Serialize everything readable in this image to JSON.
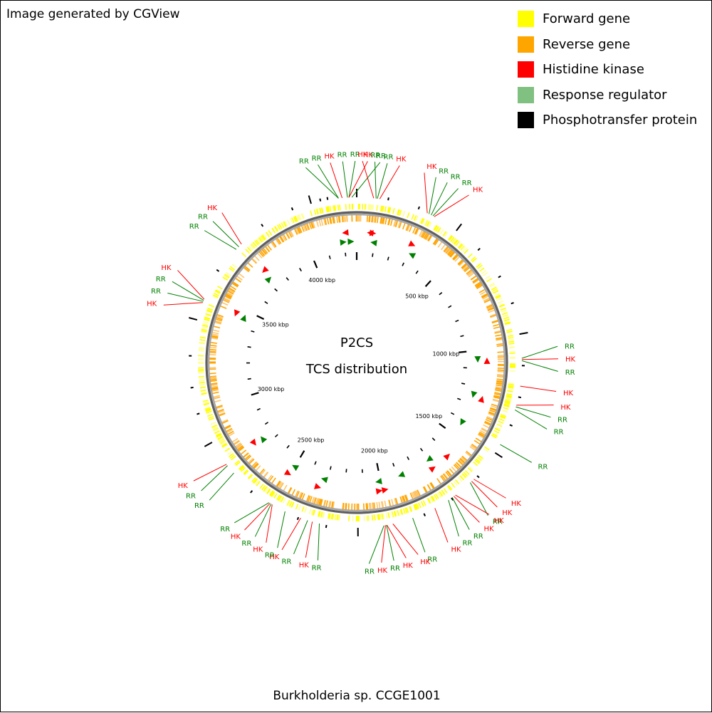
{
  "credit": "Image generated by CGView",
  "legend": [
    {
      "label": "Forward gene",
      "color": "#ffff00"
    },
    {
      "label": "Reverse gene",
      "color": "#ffa500"
    },
    {
      "label": "Histidine kinase",
      "color": "#ff0000"
    },
    {
      "label": "Response regulator",
      "color": "#80c080"
    },
    {
      "label": "Phosphotransfer protein",
      "color": "#000000"
    }
  ],
  "map": {
    "title": "P2CS",
    "subtitle": "TCS distribution",
    "organism": "Burkholderia sp. CCGE1001",
    "genome_length_kbp": 4270,
    "tick_labels": [
      "500 kbp",
      "1000 kbp",
      "1500 kbp",
      "2000 kbp",
      "2500 kbp",
      "3000 kbp",
      "3500 kbp",
      "4000 kbp"
    ],
    "tick_label_positions_kbp": [
      500,
      1000,
      1500,
      2000,
      2500,
      3000,
      3500,
      4000
    ],
    "callouts": [
      {
        "label": "RR",
        "type": "RR",
        "position_kbp": 4195
      },
      {
        "label": "RR",
        "type": "RR",
        "position_kbp": 4195
      },
      {
        "label": "HK",
        "type": "HK",
        "position_kbp": 4210
      },
      {
        "label": "RR",
        "type": "RR",
        "position_kbp": 4232
      },
      {
        "label": "RR",
        "type": "RR",
        "position_kbp": 4238
      },
      {
        "label": "HK",
        "type": "HK",
        "position_kbp": 4238
      },
      {
        "label": "RR",
        "type": "RR",
        "position_kbp": 4250
      },
      {
        "label": "HK",
        "type": "HK",
        "position_kbp": 70
      },
      {
        "label": "RR",
        "type": "RR",
        "position_kbp": 80
      },
      {
        "label": "RR",
        "type": "RR",
        "position_kbp": 85
      },
      {
        "label": "HK",
        "type": "HK",
        "position_kbp": 95
      },
      {
        "label": "HK",
        "type": "HK",
        "position_kbp": 300
      },
      {
        "label": "RR",
        "type": "RR",
        "position_kbp": 308
      },
      {
        "label": "RR",
        "type": "RR",
        "position_kbp": 318
      },
      {
        "label": "RR",
        "type": "RR",
        "position_kbp": 326
      },
      {
        "label": "HK",
        "type": "HK",
        "position_kbp": 332
      },
      {
        "label": "RR",
        "type": "RR",
        "position_kbp": 1050
      },
      {
        "label": "HK",
        "type": "HK",
        "position_kbp": 1055
      },
      {
        "label": "RR",
        "type": "RR",
        "position_kbp": 1060
      },
      {
        "label": "HK",
        "type": "HK",
        "position_kbp": 1165
      },
      {
        "label": "HK",
        "type": "HK",
        "position_kbp": 1245
      },
      {
        "label": "RR",
        "type": "RR",
        "position_kbp": 1252
      },
      {
        "label": "RR",
        "type": "RR",
        "position_kbp": 1265
      },
      {
        "label": "RR",
        "type": "RR",
        "position_kbp": 1420
      },
      {
        "label": "HK",
        "type": "HK",
        "position_kbp": 1600
      },
      {
        "label": "HK",
        "type": "HK",
        "position_kbp": 1612
      },
      {
        "label": "RR",
        "type": "RR",
        "position_kbp": 1620
      },
      {
        "label": "HK",
        "type": "HK",
        "position_kbp": 1700
      },
      {
        "label": "HK",
        "type": "HK",
        "position_kbp": 1708
      },
      {
        "label": "RR",
        "type": "RR",
        "position_kbp": 1716
      },
      {
        "label": "RR",
        "type": "RR",
        "position_kbp": 1735
      },
      {
        "label": "HK",
        "type": "HK",
        "position_kbp": 1800
      },
      {
        "label": "RR",
        "type": "RR",
        "position_kbp": 1900
      },
      {
        "label": "HK",
        "type": "HK",
        "position_kbp": 1985
      },
      {
        "label": "HK",
        "type": "HK",
        "position_kbp": 2010
      },
      {
        "label": "RR",
        "type": "RR",
        "position_kbp": 2012
      },
      {
        "label": "HK",
        "type": "HK",
        "position_kbp": 2016
      },
      {
        "label": "RR",
        "type": "RR",
        "position_kbp": 2022
      },
      {
        "label": "RR",
        "type": "RR",
        "position_kbp": 2290
      },
      {
        "label": "HK",
        "type": "HK",
        "position_kbp": 2320
      },
      {
        "label": "RR",
        "type": "RR",
        "position_kbp": 2340
      },
      {
        "label": "HK",
        "type": "HK",
        "position_kbp": 2370
      },
      {
        "label": "RR",
        "type": "RR",
        "position_kbp": 2440
      },
      {
        "label": "HK",
        "type": "HK",
        "position_kbp": 2500
      },
      {
        "label": "RR",
        "type": "RR",
        "position_kbp": 2505
      },
      {
        "label": "HK",
        "type": "HK",
        "position_kbp": 2510
      },
      {
        "label": "RR",
        "type": "RR",
        "position_kbp": 2515
      },
      {
        "label": "RR",
        "type": "RR",
        "position_kbp": 2705
      },
      {
        "label": "RR",
        "type": "RR",
        "position_kbp": 2745
      },
      {
        "label": "HK",
        "type": "HK",
        "position_kbp": 2752
      },
      {
        "label": "HK",
        "type": "HK",
        "position_kbp": 3455
      },
      {
        "label": "RR",
        "type": "RR",
        "position_kbp": 3460
      },
      {
        "label": "RR",
        "type": "RR",
        "position_kbp": 3465
      },
      {
        "label": "HK",
        "type": "HK",
        "position_kbp": 3470
      },
      {
        "label": "RR",
        "type": "RR",
        "position_kbp": 3715
      },
      {
        "label": "RR",
        "type": "RR",
        "position_kbp": 3730
      },
      {
        "label": "HK",
        "type": "HK",
        "position_kbp": 3745
      }
    ],
    "features": [
      {
        "type": "RR",
        "position_kbp": 4195
      },
      {
        "type": "HK",
        "position_kbp": 4210
      },
      {
        "type": "RR",
        "position_kbp": 4238
      },
      {
        "type": "HK",
        "position_kbp": 70
      },
      {
        "type": "HK",
        "position_kbp": 85
      },
      {
        "type": "RR",
        "position_kbp": 95
      },
      {
        "type": "HK",
        "position_kbp": 300
      },
      {
        "type": "RR",
        "position_kbp": 320
      },
      {
        "type": "RR",
        "position_kbp": 1050
      },
      {
        "type": "HK",
        "position_kbp": 1058
      },
      {
        "type": "RR",
        "position_kbp": 1250
      },
      {
        "type": "HK",
        "position_kbp": 1260
      },
      {
        "type": "RR",
        "position_kbp": 1420
      },
      {
        "type": "HK",
        "position_kbp": 1610
      },
      {
        "type": "RR",
        "position_kbp": 1700
      },
      {
        "type": "HK",
        "position_kbp": 1710
      },
      {
        "type": "RR",
        "position_kbp": 1880
      },
      {
        "type": "HK",
        "position_kbp": 1985
      },
      {
        "type": "RR",
        "position_kbp": 2012
      },
      {
        "type": "HK",
        "position_kbp": 2016
      },
      {
        "type": "RR",
        "position_kbp": 2320
      },
      {
        "type": "HK",
        "position_kbp": 2340
      },
      {
        "type": "RR",
        "position_kbp": 2500
      },
      {
        "type": "HK",
        "position_kbp": 2510
      },
      {
        "type": "RR",
        "position_kbp": 2740
      },
      {
        "type": "HK",
        "position_kbp": 2750
      },
      {
        "type": "RR",
        "position_kbp": 3460
      },
      {
        "type": "HK",
        "position_kbp": 3465
      },
      {
        "type": "RR",
        "position_kbp": 3720
      },
      {
        "type": "HK",
        "position_kbp": 3735
      }
    ],
    "phosphotransfer_positions_kbp": [
      4270,
      4150,
      130,
      260,
      440,
      560,
      700,
      820,
      950,
      1080,
      1210,
      1330,
      1460,
      1580,
      1720,
      1850,
      2130,
      2260,
      2380,
      2600,
      2860,
      2990,
      3100,
      3230,
      3380,
      3600,
      3860,
      4000,
      4080,
      4120
    ]
  }
}
